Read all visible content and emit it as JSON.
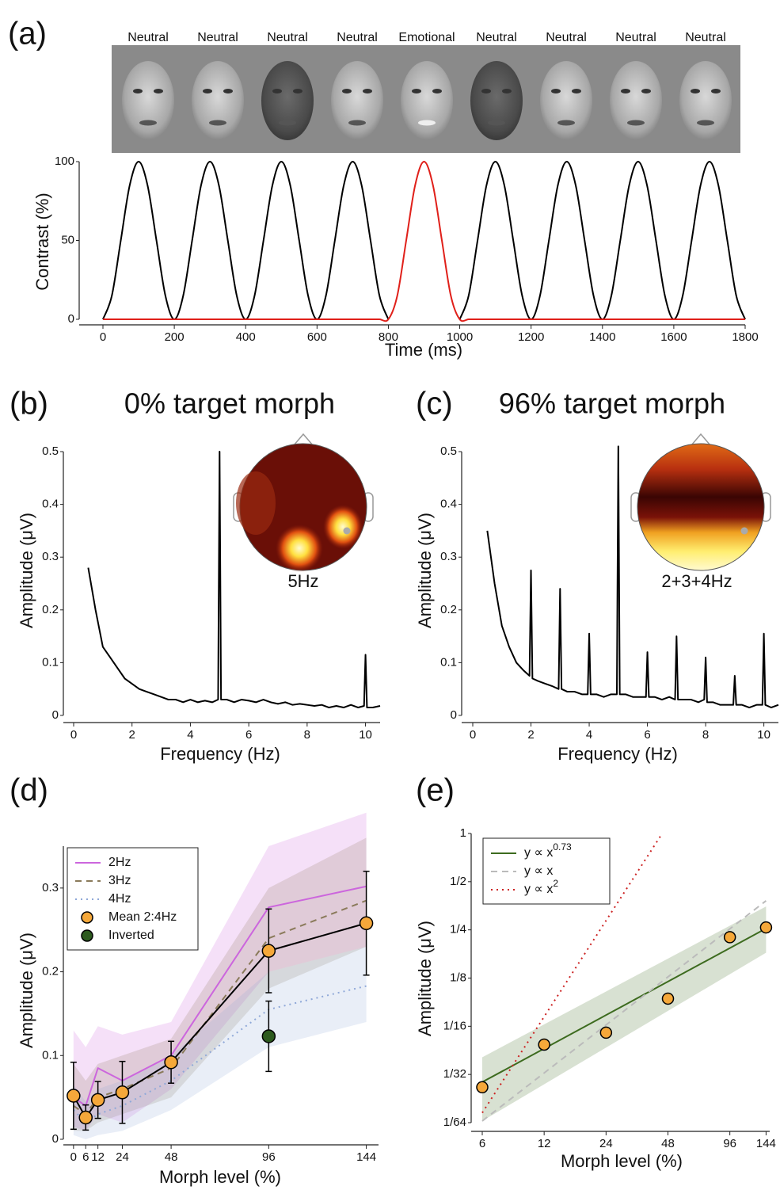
{
  "chart_data": [
    {
      "type": "line",
      "panel_label": "(a)",
      "stimulus_labels": [
        "Neutral",
        "Neutral",
        "Neutral",
        "Neutral",
        "Emotional",
        "Neutral",
        "Neutral",
        "Neutral",
        "Neutral"
      ],
      "x_label": "Time (ms)",
      "y_label": "Contrast (%)",
      "x": [
        0,
        25,
        50,
        75,
        100,
        125,
        150,
        175,
        200,
        225,
        250,
        275,
        300,
        325,
        350,
        375,
        400,
        425,
        450,
        475,
        500,
        525,
        550,
        575,
        600,
        625,
        650,
        675,
        700,
        725,
        750,
        775,
        800,
        825,
        850,
        875,
        900,
        925,
        950,
        975,
        1000,
        1025,
        1050,
        1075,
        1100,
        1125,
        1150,
        1175,
        1200,
        1225,
        1250,
        1275,
        1300,
        1325,
        1350,
        1375,
        1400,
        1425,
        1450,
        1475,
        1500,
        1525,
        1550,
        1575,
        1600,
        1625,
        1650,
        1675,
        1700,
        1725,
        1750,
        1775,
        1800
      ],
      "xlim": [
        0,
        1800
      ],
      "xticks": [
        0,
        200,
        400,
        600,
        800,
        1000,
        1200,
        1400,
        1600,
        1800
      ],
      "ylim": [
        0,
        100
      ],
      "yticks": [
        0,
        50,
        100
      ],
      "smooth": true,
      "series": [
        {
          "color": "#000000",
          "style": "solid",
          "values": [
            0,
            15,
            50,
            85,
            100,
            85,
            50,
            15,
            0,
            15,
            50,
            85,
            100,
            85,
            50,
            15,
            0,
            15,
            50,
            85,
            100,
            85,
            50,
            15,
            0,
            15,
            50,
            85,
            100,
            85,
            50,
            15,
            0,
            null,
            null,
            null,
            null,
            null,
            null,
            null,
            0,
            15,
            50,
            85,
            100,
            85,
            50,
            15,
            0,
            15,
            50,
            85,
            100,
            85,
            50,
            15,
            0,
            15,
            50,
            85,
            100,
            85,
            50,
            15,
            0,
            15,
            50,
            85,
            100,
            85,
            50,
            15,
            0
          ]
        },
        {
          "color": "#e0201a",
          "style": "solid",
          "values": [
            0,
            0,
            0,
            0,
            0,
            0,
            0,
            0,
            0,
            0,
            0,
            0,
            0,
            0,
            0,
            0,
            0,
            0,
            0,
            0,
            0,
            0,
            0,
            0,
            0,
            0,
            0,
            0,
            0,
            0,
            0,
            0,
            0,
            15,
            50,
            85,
            100,
            85,
            50,
            15,
            0,
            0,
            0,
            0,
            0,
            0,
            0,
            0,
            0,
            0,
            0,
            0,
            0,
            0,
            0,
            0,
            0,
            0,
            0,
            0,
            0,
            0,
            0,
            0,
            0,
            0,
            0,
            0,
            0,
            0,
            0,
            0,
            0
          ]
        }
      ]
    },
    {
      "type": "line",
      "panel_label": "(b)",
      "title": "0% target morph",
      "inset_label": "5Hz",
      "x_label": "Frequency (Hz)",
      "y_label": "Amplitude (μV)",
      "x": [
        0.5,
        0.75,
        1,
        1.25,
        1.5,
        1.75,
        2,
        2.25,
        2.5,
        2.75,
        3,
        3.25,
        3.5,
        3.75,
        4,
        4.25,
        4.5,
        4.75,
        4.95,
        5,
        5.05,
        5.25,
        5.5,
        5.75,
        6,
        6.25,
        6.5,
        6.75,
        7,
        7.25,
        7.5,
        7.75,
        8,
        8.25,
        8.5,
        8.75,
        9,
        9.25,
        9.5,
        9.75,
        9.95,
        10,
        10.05,
        10.25,
        10.5
      ],
      "xlim": [
        0,
        10.5
      ],
      "xticks": [
        0,
        2,
        4,
        6,
        8,
        10
      ],
      "ylim": [
        0,
        0.5
      ],
      "yticks": [
        0,
        0.1,
        0.2,
        0.3,
        0.4,
        0.5
      ],
      "series": [
        {
          "color": "#000000",
          "style": "solid",
          "values": [
            0.28,
            0.2,
            0.13,
            0.11,
            0.09,
            0.07,
            0.06,
            0.05,
            0.045,
            0.04,
            0.035,
            0.03,
            0.03,
            0.025,
            0.03,
            0.025,
            0.028,
            0.025,
            0.03,
            0.5,
            0.03,
            0.03,
            0.025,
            0.03,
            0.028,
            0.025,
            0.03,
            0.025,
            0.022,
            0.025,
            0.02,
            0.022,
            0.02,
            0.018,
            0.02,
            0.015,
            0.018,
            0.015,
            0.02,
            0.015,
            0.018,
            0.115,
            0.015,
            0.015,
            0.018
          ]
        }
      ]
    },
    {
      "type": "line",
      "panel_label": "(c)",
      "title": "96% target morph",
      "inset_label": "2+3+4Hz",
      "x_label": "Frequency (Hz)",
      "y_label": "Amplitude (μV)",
      "x": [
        0.5,
        0.75,
        1,
        1.25,
        1.5,
        1.75,
        1.95,
        2,
        2.05,
        2.25,
        2.5,
        2.75,
        2.95,
        3,
        3.05,
        3.25,
        3.5,
        3.75,
        3.95,
        4,
        4.05,
        4.25,
        4.5,
        4.75,
        4.95,
        5,
        5.05,
        5.25,
        5.5,
        5.75,
        5.95,
        6,
        6.05,
        6.25,
        6.5,
        6.75,
        6.95,
        7,
        7.05,
        7.25,
        7.5,
        7.75,
        7.95,
        8,
        8.05,
        8.25,
        8.5,
        8.75,
        8.95,
        9,
        9.05,
        9.25,
        9.5,
        9.75,
        9.95,
        10,
        10.05,
        10.25,
        10.5
      ],
      "xlim": [
        0,
        10.5
      ],
      "xticks": [
        0,
        2,
        4,
        6,
        8,
        10
      ],
      "ylim": [
        0,
        0.5
      ],
      "yticks": [
        0,
        0.1,
        0.2,
        0.3,
        0.4,
        0.5
      ],
      "series": [
        {
          "color": "#000000",
          "style": "solid",
          "values": [
            0.35,
            0.25,
            0.17,
            0.13,
            0.1,
            0.085,
            0.075,
            0.275,
            0.07,
            0.065,
            0.06,
            0.055,
            0.05,
            0.24,
            0.05,
            0.045,
            0.045,
            0.04,
            0.04,
            0.155,
            0.04,
            0.04,
            0.035,
            0.04,
            0.04,
            0.51,
            0.04,
            0.04,
            0.035,
            0.035,
            0.035,
            0.12,
            0.035,
            0.035,
            0.03,
            0.035,
            0.03,
            0.15,
            0.03,
            0.03,
            0.03,
            0.025,
            0.03,
            0.11,
            0.025,
            0.025,
            0.02,
            0.02,
            0.02,
            0.075,
            0.02,
            0.02,
            0.015,
            0.02,
            0.02,
            0.155,
            0.02,
            0.015,
            0.02
          ]
        }
      ]
    },
    {
      "type": "line",
      "panel_label": "(d)",
      "x_label": "Morph level (%)",
      "y_label": "Amplitude (μV)",
      "x": [
        0,
        6,
        12,
        24,
        48,
        96,
        144
      ],
      "xlim": [
        -5,
        150
      ],
      "xticks": [
        0,
        6,
        12,
        24,
        48,
        96,
        144
      ],
      "ylim": [
        0,
        0.35
      ],
      "yticks": [
        0,
        0.1,
        0.2,
        0.3
      ],
      "legend": "upper left",
      "series": [
        {
          "name": "2Hz",
          "color": "#cc66dd",
          "style": "solid",
          "values": [
            0.05,
            0.04,
            0.085,
            0.07,
            0.1,
            0.277,
            0.302
          ],
          "lower": [
            0.015,
            0.01,
            0.03,
            0.02,
            0.06,
            0.2,
            0.23
          ],
          "upper": [
            0.13,
            0.11,
            0.135,
            0.125,
            0.14,
            0.35,
            0.39
          ]
        },
        {
          "name": "3Hz",
          "color": "#8a7a5a",
          "style": "dashed",
          "values": [
            0.04,
            0.03,
            0.05,
            0.06,
            0.085,
            0.24,
            0.285
          ],
          "lower": [
            0.01,
            0.01,
            0.02,
            0.03,
            0.05,
            0.18,
            0.23
          ],
          "upper": [
            0.09,
            0.07,
            0.09,
            0.1,
            0.12,
            0.3,
            0.36
          ]
        },
        {
          "name": "4Hz",
          "color": "#8fa8d8",
          "style": "dotted",
          "values": [
            0.035,
            0.02,
            0.03,
            0.04,
            0.07,
            0.155,
            0.183
          ],
          "lower": [
            0.005,
            0,
            0.005,
            0.01,
            0.035,
            0.11,
            0.14
          ],
          "upper": [
            0.065,
            0.045,
            0.06,
            0.07,
            0.1,
            0.2,
            0.23
          ]
        },
        {
          "name": "Mean 2:4Hz",
          "color": "#f5a83a",
          "line_color": "#000000",
          "style": "solid",
          "marker": true,
          "values": [
            0.052,
            0.026,
            0.047,
            0.056,
            0.092,
            0.225,
            0.258
          ],
          "errors": [
            0.04,
            0.015,
            0.022,
            0.037,
            0.025,
            0.05,
            0.062
          ]
        },
        {
          "name": "Inverted",
          "color": "#2d5a1e",
          "marker": true,
          "x": [
            96
          ],
          "values": [
            0.123
          ],
          "errors": [
            0.042
          ]
        }
      ]
    },
    {
      "type": "scatter",
      "panel_label": "(e)",
      "x_label": "Morph level (%)",
      "y_label": "Amplitude (μV)",
      "xscale": "log",
      "yscale": "log",
      "xlim": [
        5.3,
        150
      ],
      "xticks": [
        6,
        12,
        24,
        48,
        96,
        144
      ],
      "ylim": [
        0.015625,
        1
      ],
      "yticks": [
        {
          "value": 0.015625,
          "label": "1/64"
        },
        {
          "value": 0.03125,
          "label": "1/32"
        },
        {
          "value": 0.0625,
          "label": "1/16"
        },
        {
          "value": 0.125,
          "label": "1/8"
        },
        {
          "value": 0.25,
          "label": "1/4"
        },
        {
          "value": 0.5,
          "label": "1/2"
        },
        1
      ],
      "legend": "upper left",
      "series": [
        {
          "name": "y ∝ x",
          "superscript": "0.73",
          "color": "#3d6b1f",
          "style": "solid",
          "x": [
            6,
            144
          ],
          "values": [
            0.028,
            0.255
          ],
          "lower": [
            0.016,
            0.18
          ],
          "upper": [
            0.04,
            0.35
          ]
        },
        {
          "name": "y ∝ x",
          "color": "#bbbbbb",
          "style": "dashed",
          "x": [
            6,
            144
          ],
          "values": [
            0.016,
            0.38
          ]
        },
        {
          "name": "y ∝ x",
          "superscript": "2",
          "color": "#cc2222",
          "style": "dotted",
          "x": [
            6,
            45
          ],
          "values": [
            0.018,
            1
          ]
        },
        {
          "color": "#f5a83a",
          "marker": true,
          "x": [
            6,
            12,
            24,
            48,
            96,
            144
          ],
          "values": [
            0.026,
            0.048,
            0.057,
            0.093,
            0.225,
            0.259
          ]
        }
      ]
    }
  ]
}
